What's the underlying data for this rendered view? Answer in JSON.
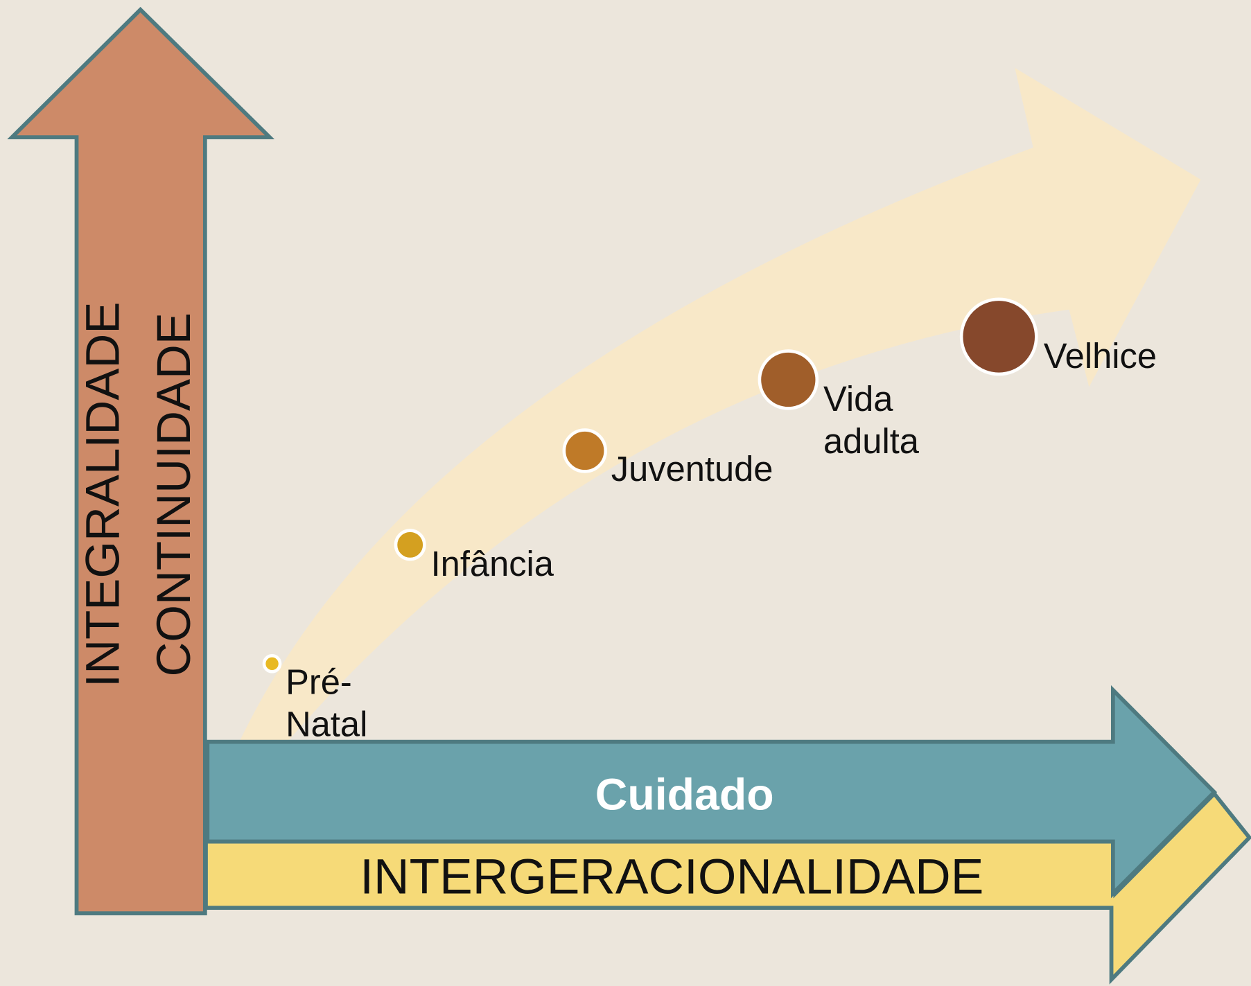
{
  "vertical_axis": {
    "labels": [
      "INTEGRALIDADE",
      "CONTINUIDADE"
    ]
  },
  "horizontal_axis": {
    "top": "Cuidado",
    "bottom": "INTERGERACIONALIDADE"
  },
  "stages": [
    {
      "lines": [
        "Pré-",
        "Natal"
      ]
    },
    {
      "lines": [
        "Infância"
      ]
    },
    {
      "lines": [
        "Juventude"
      ]
    },
    {
      "lines": [
        "Vida",
        "adulta"
      ]
    },
    {
      "lines": [
        "Velhice"
      ]
    }
  ]
}
